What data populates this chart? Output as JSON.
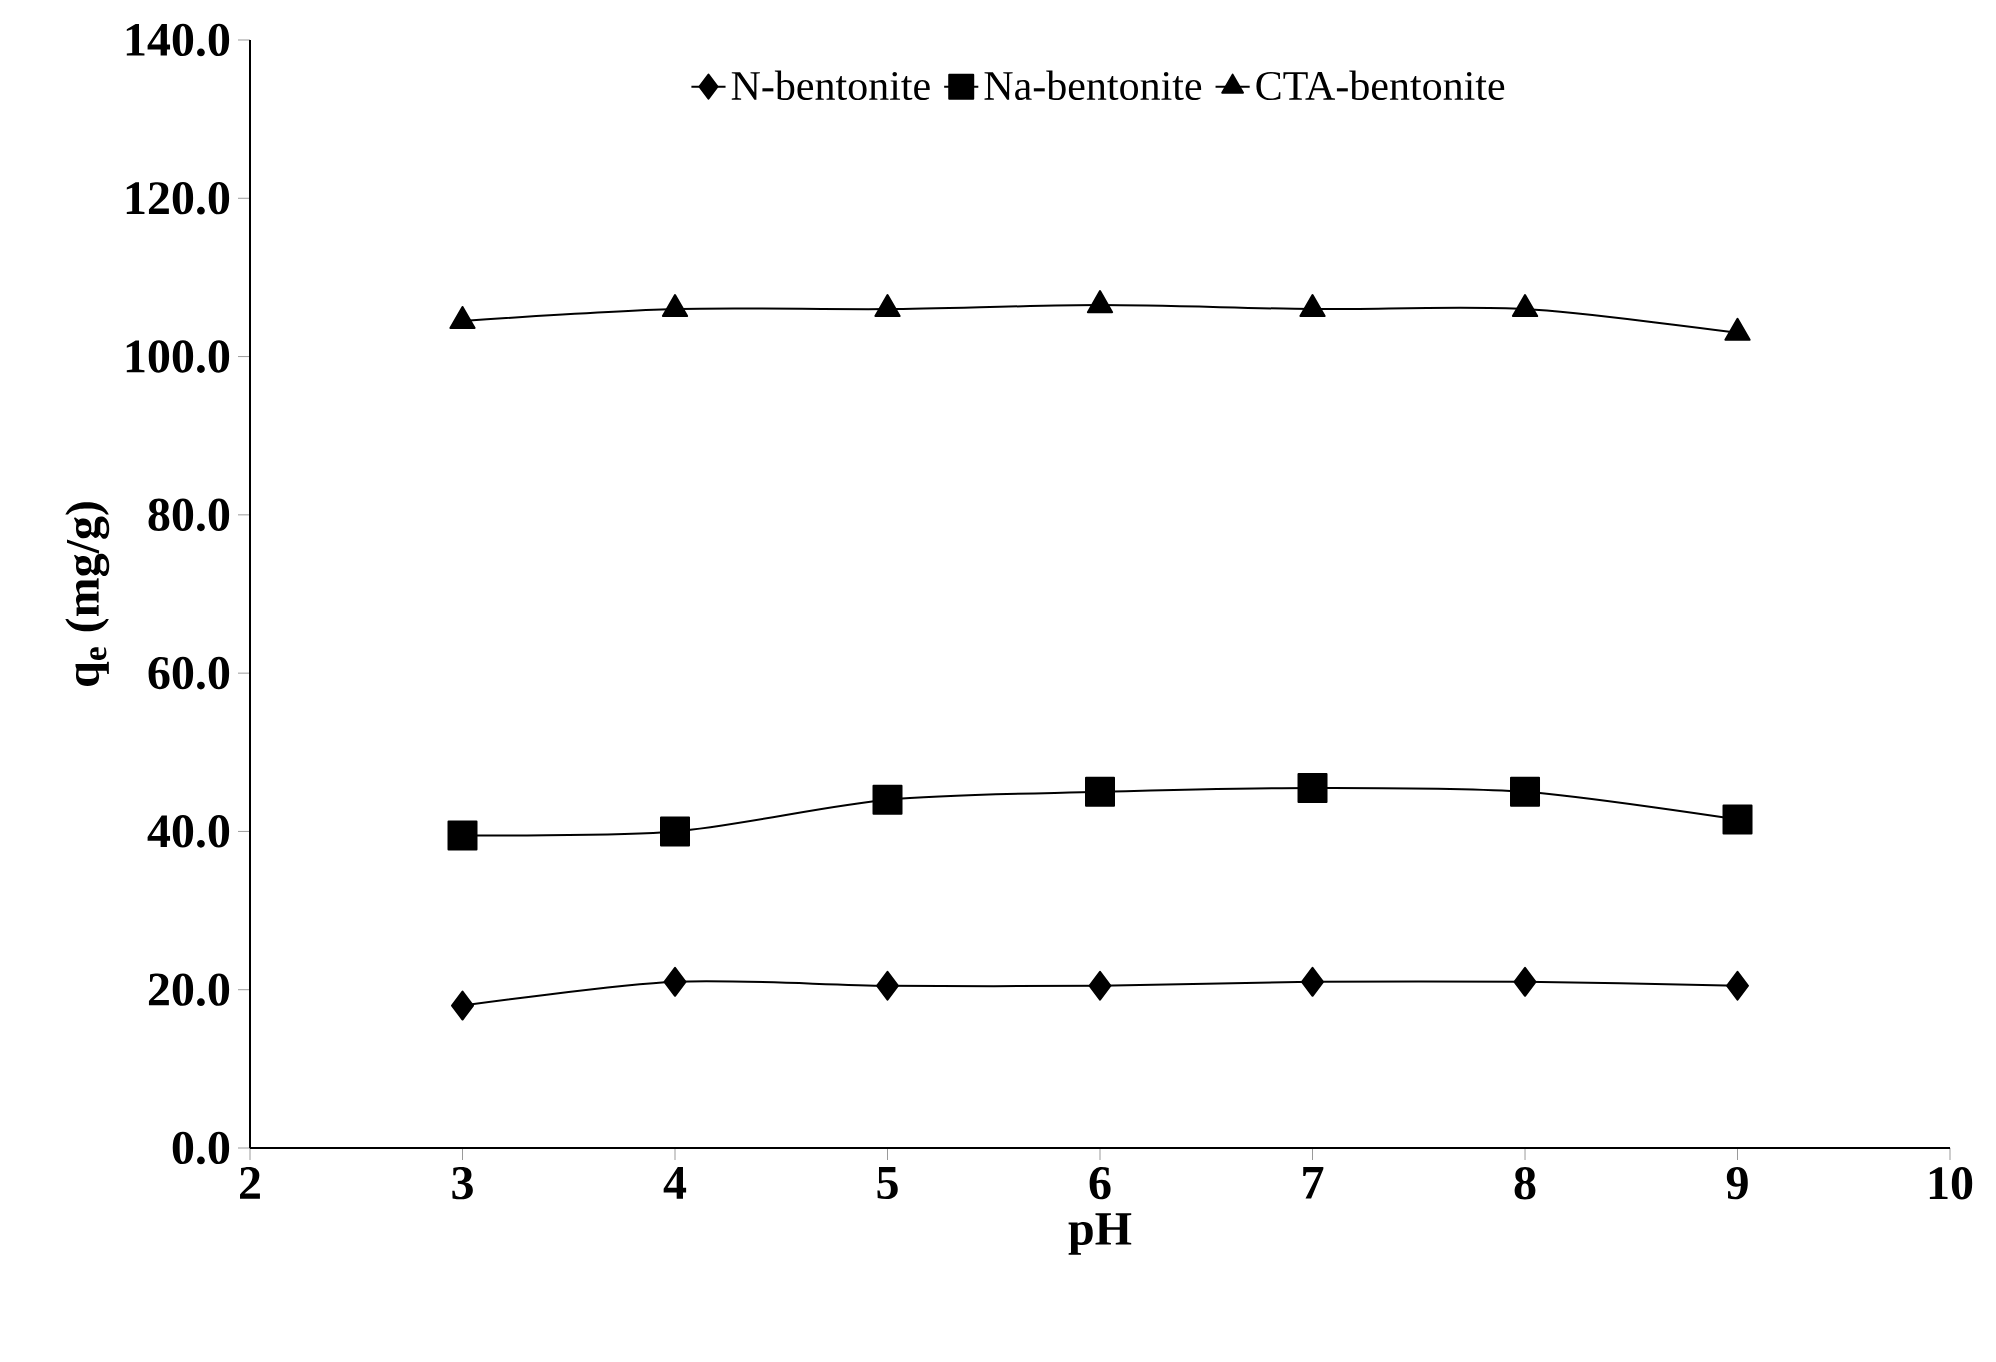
{
  "chart_data": {
    "type": "line",
    "xlabel": "pH",
    "ylabel": "q$_{e}$ (mg/g)",
    "x": [
      3,
      4,
      5,
      6,
      7,
      8,
      9
    ],
    "series": [
      {
        "name": "N-bentonite",
        "color": "#000000",
        "marker": "diamond",
        "values": [
          18.0,
          21.0,
          20.5,
          20.5,
          21.0,
          21.0,
          20.5
        ]
      },
      {
        "name": "Na-bentonite",
        "color": "#000000",
        "marker": "square",
        "values": [
          39.5,
          40.0,
          44.0,
          45.0,
          45.5,
          45.0,
          41.5
        ]
      },
      {
        "name": "CTA-bentonite",
        "color": "#000000",
        "marker": "triangle",
        "values": [
          104.5,
          106.0,
          106.0,
          106.5,
          106.0,
          106.0,
          103.0
        ]
      }
    ],
    "xlim": [
      2,
      10
    ],
    "xticks": [
      2,
      3,
      4,
      5,
      6,
      7,
      8,
      9,
      10
    ],
    "ylim": [
      0,
      140
    ],
    "yticks": [
      {
        "value": 0,
        "label": "0.0"
      },
      {
        "value": 20,
        "label": "20.0"
      },
      {
        "value": 40,
        "label": "40.0"
      },
      {
        "value": 60,
        "label": "60.0"
      },
      {
        "value": 80,
        "label": "80.0"
      },
      {
        "value": 100,
        "label": "100.0"
      },
      {
        "value": 120,
        "label": "120.0"
      },
      {
        "value": 140,
        "label": "140.0"
      }
    ],
    "grid": false,
    "legend": "top",
    "line_style": "solid"
  }
}
